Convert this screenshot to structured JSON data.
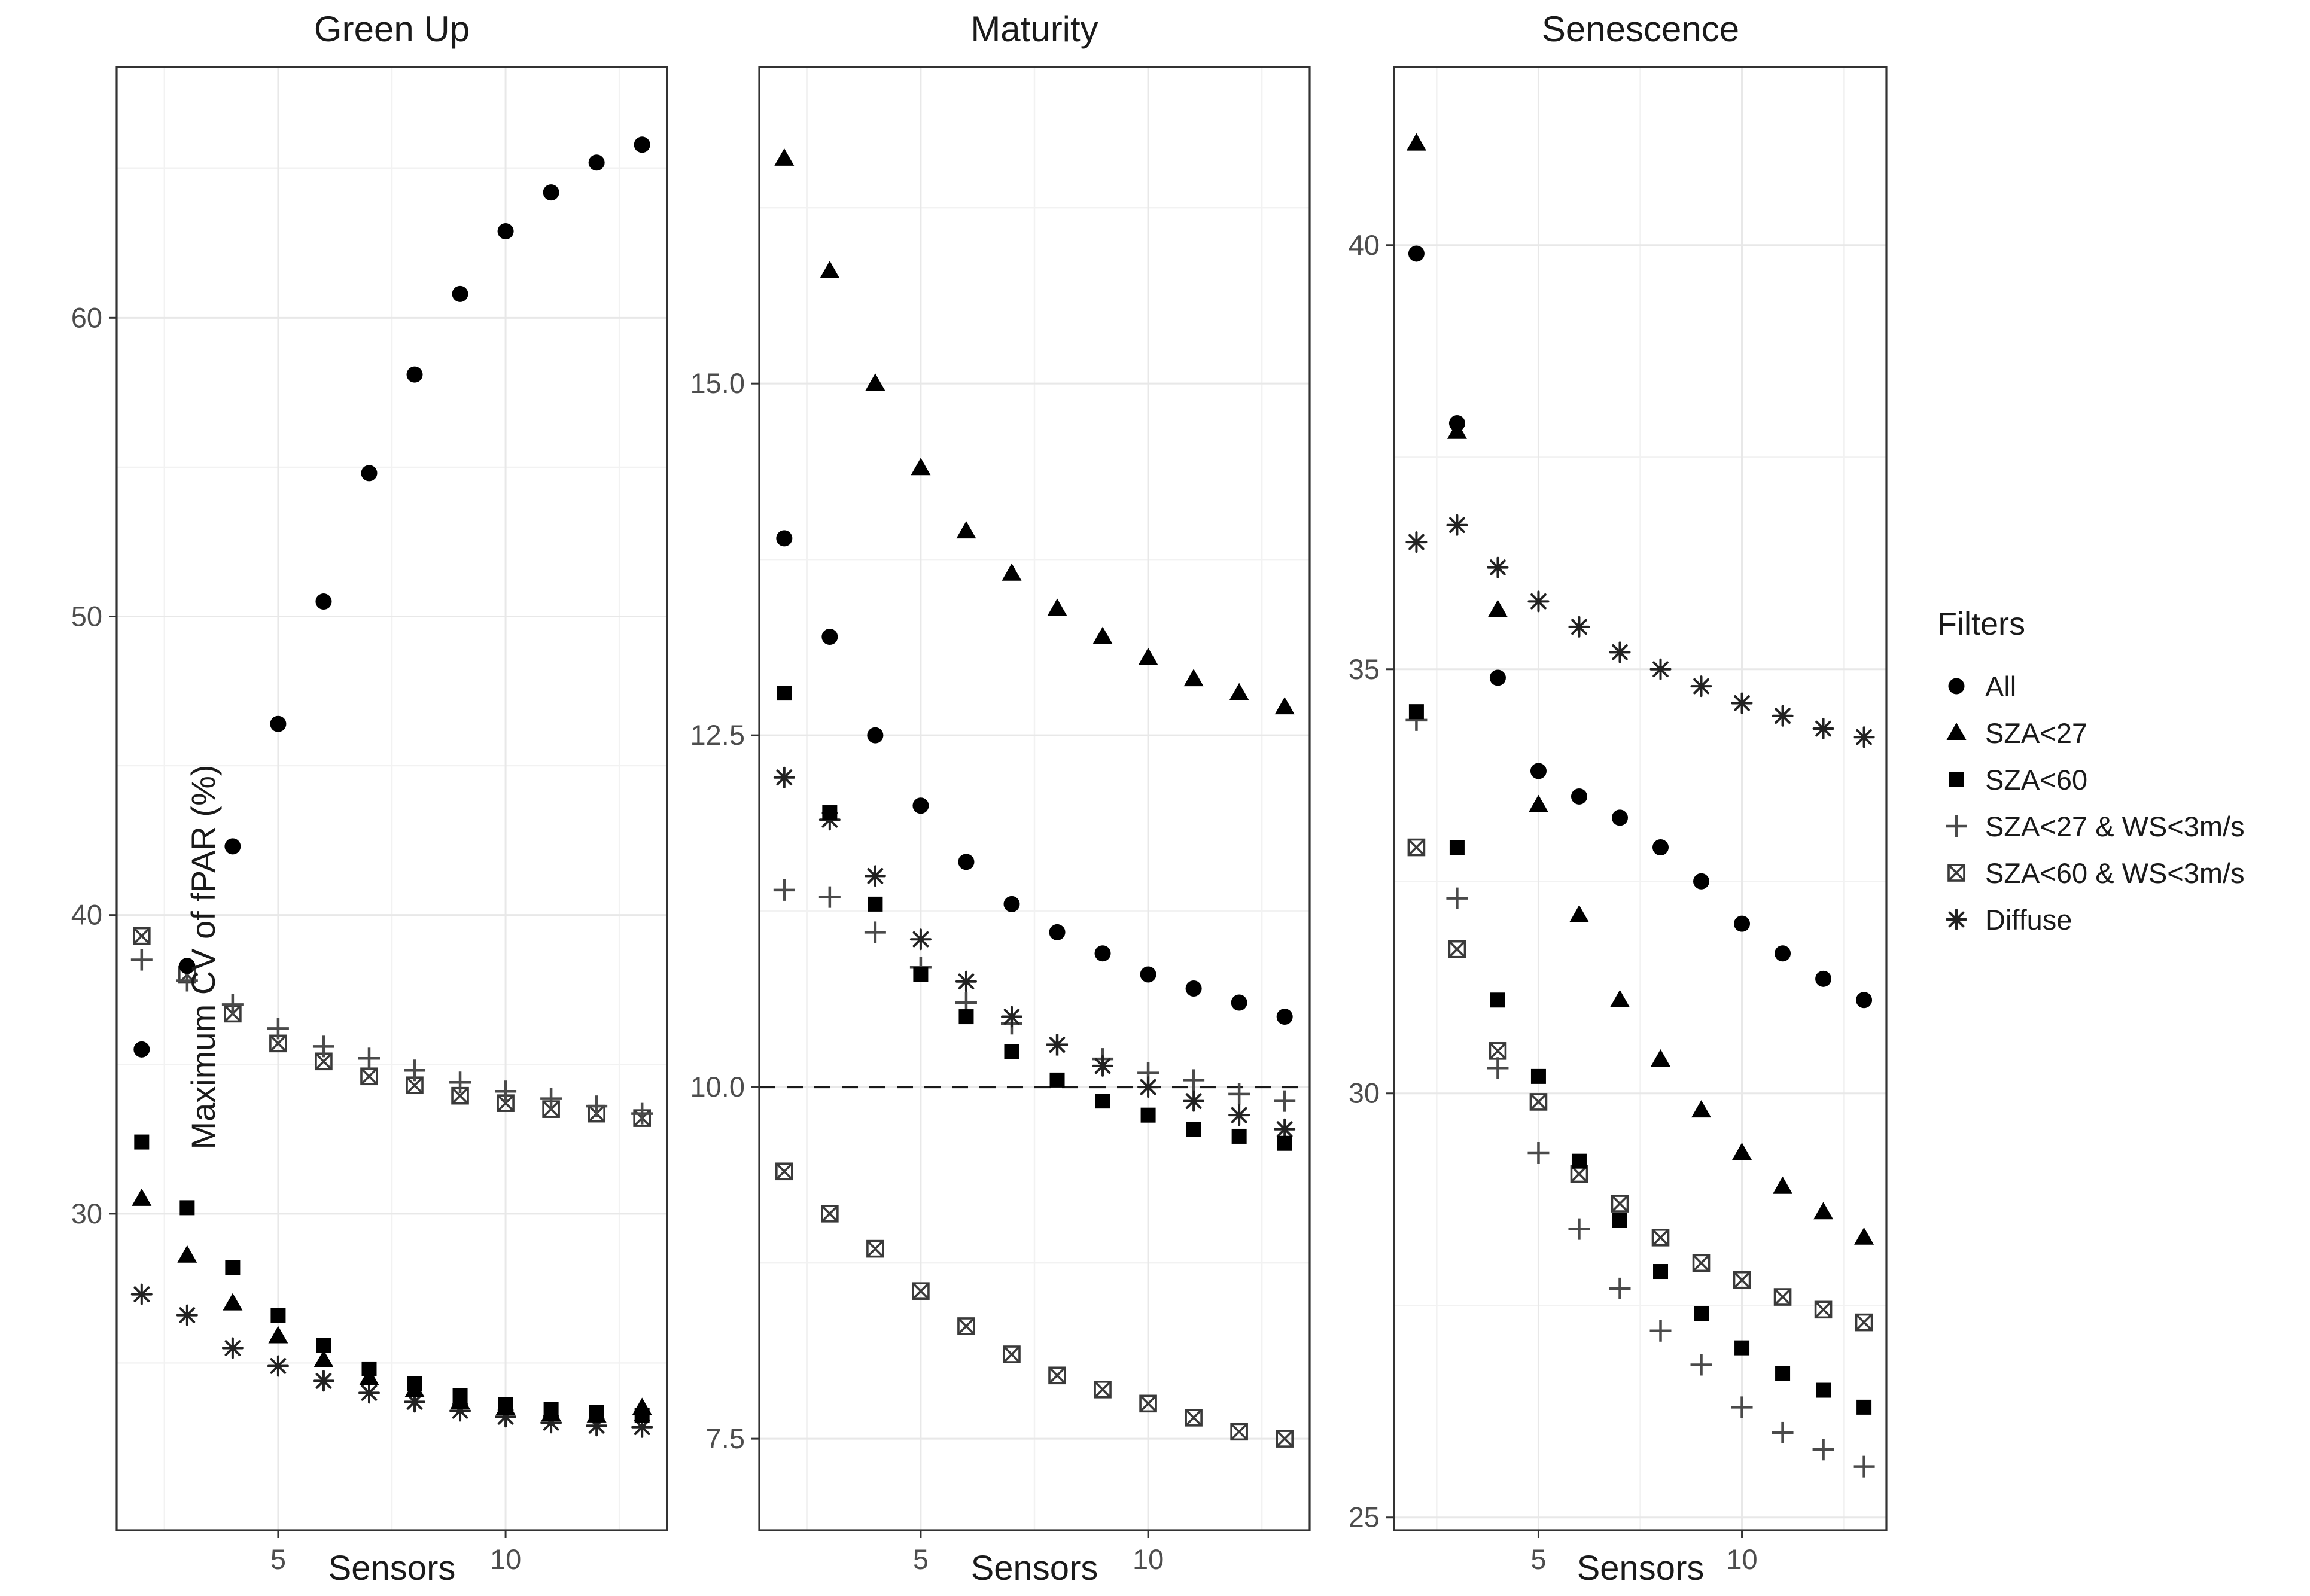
{
  "axes": {
    "y_label": "Maximum CV of fPAR (%)",
    "x_label": "Sensors"
  },
  "legend": {
    "title": "Filters",
    "items": [
      {
        "label": "All",
        "marker": "circle",
        "series_key": "all"
      },
      {
        "label": "SZA<27",
        "marker": "triangle",
        "series_key": "sza27"
      },
      {
        "label": "SZA<60",
        "marker": "square",
        "series_key": "sza60"
      },
      {
        "label": "SZA<27 & WS<3m/s",
        "marker": "plus",
        "series_key": "sza27ws"
      },
      {
        "label": "SZA<60 & WS<3m/s",
        "marker": "square-x",
        "series_key": "sza60ws"
      },
      {
        "label": "Diffuse",
        "marker": "asterisk",
        "series_key": "diffuse"
      }
    ]
  },
  "colors": {
    "marker_fill": "#000000",
    "plus_stroke": "#4a4a4a",
    "squarex_stroke": "#3a3a3a",
    "asterisk_stroke": "#222222",
    "tick_label": "#4d4d4d",
    "grid_major": "#e8e8e8",
    "grid_minor": "#f2f2f2",
    "panel_border": "#333333",
    "dashed_line": "#1a1a1a"
  },
  "chart_data": [
    {
      "type": "scatter",
      "title": "Green Up",
      "x": [
        2,
        3,
        4,
        5,
        6,
        7,
        8,
        9,
        10,
        11,
        12,
        13
      ],
      "xlim": [
        1.45,
        13.55
      ],
      "xticks": [
        5,
        10
      ],
      "xtick_labels": [
        "5",
        "10"
      ],
      "xminor": [
        2.5,
        7.5,
        12.5
      ],
      "ylim": [
        19.4,
        68.4
      ],
      "yticks": [
        30,
        40,
        50,
        60
      ],
      "ytick_labels": [
        "30",
        "40",
        "50",
        "60"
      ],
      "yminor": [
        25,
        35,
        45,
        55,
        65
      ],
      "series": {
        "all": [
          35.5,
          38.3,
          42.3,
          46.4,
          50.5,
          54.8,
          58.1,
          60.8,
          62.9,
          64.2,
          65.2,
          65.8
        ],
        "sza27": [
          30.5,
          28.6,
          27.0,
          25.9,
          25.1,
          24.5,
          24.1,
          23.7,
          23.5,
          23.3,
          23.25,
          23.5
        ],
        "sza60": [
          32.4,
          30.2,
          28.2,
          26.6,
          25.6,
          24.8,
          24.3,
          23.9,
          23.6,
          23.45,
          23.35,
          23.25
        ],
        "sza27ws": [
          38.5,
          37.8,
          37.0,
          36.2,
          35.6,
          35.2,
          34.8,
          34.4,
          34.1,
          33.85,
          33.6,
          33.35
        ],
        "sza60ws": [
          39.3,
          38.0,
          36.7,
          35.7,
          35.1,
          34.6,
          34.3,
          33.95,
          33.7,
          33.5,
          33.35,
          33.2
        ],
        "diffuse": [
          27.3,
          26.6,
          25.5,
          24.9,
          24.4,
          24.0,
          23.7,
          23.4,
          23.2,
          23.0,
          22.9,
          22.85
        ]
      }
    },
    {
      "type": "scatter",
      "title": "Maturity",
      "x": [
        2,
        3,
        4,
        5,
        6,
        7,
        8,
        9,
        10,
        11,
        12,
        13
      ],
      "xlim": [
        1.45,
        13.55
      ],
      "xticks": [
        5,
        10
      ],
      "xtick_labels": [
        "5",
        "10"
      ],
      "xminor": [
        2.5,
        7.5,
        12.5
      ],
      "ylim": [
        6.85,
        17.25
      ],
      "yticks": [
        7.5,
        10.0,
        12.5,
        15.0
      ],
      "ytick_labels": [
        "7.5",
        "10.0",
        "12.5",
        "15.0"
      ],
      "yminor": [
        8.75,
        11.25,
        13.75,
        16.25
      ],
      "dashed_hline": 10.0,
      "series": {
        "all": [
          13.9,
          13.2,
          12.5,
          12.0,
          11.6,
          11.3,
          11.1,
          10.95,
          10.8,
          10.7,
          10.6,
          10.5
        ],
        "sza27": [
          16.6,
          15.8,
          15.0,
          14.4,
          13.95,
          13.65,
          13.4,
          13.2,
          13.05,
          12.9,
          12.8,
          12.7
        ],
        "sza60": [
          12.8,
          11.95,
          11.3,
          10.8,
          10.5,
          10.25,
          10.05,
          9.9,
          9.8,
          9.7,
          9.65,
          9.6
        ],
        "sza27ws": [
          11.4,
          11.35,
          11.1,
          10.85,
          10.6,
          10.45,
          10.3,
          10.2,
          10.1,
          10.05,
          9.95,
          9.9
        ],
        "sza60ws": [
          9.4,
          9.1,
          8.85,
          8.55,
          8.3,
          8.1,
          7.95,
          7.85,
          7.75,
          7.65,
          7.55,
          7.5
        ],
        "diffuse": [
          12.2,
          11.9,
          11.5,
          11.05,
          10.75,
          10.5,
          10.3,
          10.15,
          10.0,
          9.9,
          9.8,
          9.7
        ]
      }
    },
    {
      "type": "scatter",
      "title": "Senescence",
      "x": [
        2,
        3,
        4,
        5,
        6,
        7,
        8,
        9,
        10,
        11,
        12,
        13
      ],
      "xlim": [
        1.45,
        13.55
      ],
      "xticks": [
        5,
        10
      ],
      "xtick_labels": [
        "5",
        "10"
      ],
      "xminor": [
        2.5,
        7.5,
        12.5
      ],
      "ylim": [
        24.85,
        42.1
      ],
      "yticks": [
        25,
        30,
        35,
        40
      ],
      "ytick_labels": [
        "25",
        "30",
        "35",
        "40"
      ],
      "yminor": [
        27.5,
        32.5,
        37.5
      ],
      "series": {
        "all": [
          39.9,
          37.9,
          34.9,
          33.8,
          33.5,
          33.25,
          32.9,
          32.5,
          32.0,
          31.65,
          31.35,
          31.1
        ],
        "sza27": [
          41.2,
          37.8,
          35.7,
          33.4,
          32.1,
          31.1,
          30.4,
          29.8,
          29.3,
          28.9,
          28.6,
          28.3
        ],
        "sza60": [
          34.5,
          32.9,
          31.1,
          30.2,
          29.2,
          28.5,
          27.9,
          27.4,
          27.0,
          26.7,
          26.5,
          26.3
        ],
        "sza27ws": [
          34.4,
          32.3,
          30.3,
          29.3,
          28.4,
          27.7,
          27.2,
          26.8,
          26.3,
          26.0,
          25.8,
          25.6
        ],
        "sza60ws": [
          32.9,
          31.7,
          30.5,
          29.9,
          29.05,
          28.7,
          28.3,
          28.0,
          27.8,
          27.6,
          27.45,
          27.3
        ],
        "diffuse": [
          36.5,
          36.7,
          36.2,
          35.8,
          35.5,
          35.2,
          35.0,
          34.8,
          34.6,
          34.45,
          34.3,
          34.2
        ]
      }
    }
  ]
}
